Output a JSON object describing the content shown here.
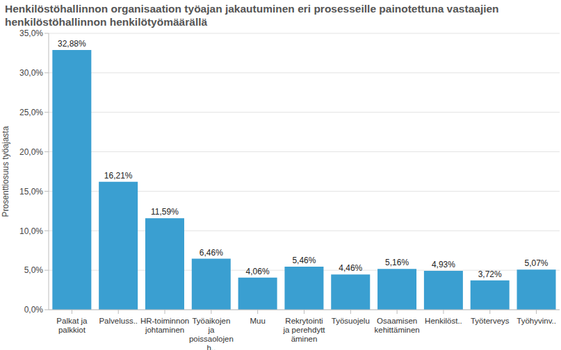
{
  "chart_data": {
    "type": "bar",
    "title": "Henkilöstöhallinnon organisaation työajan jakautuminen eri prosesseille painotettuna vastaajien henkilöstöhallinnon henkilötyömäärällä",
    "y_label": "Prosenttiosuus työajasta",
    "categories": [
      "Palkat ja palkkiot",
      "Palveluss..",
      "HR-toiminnon johtaminen",
      "Työaikojen ja poissaolojen h..",
      "Muu",
      "Rekrytointi ja perehdyttäminen",
      "Työsuojelu",
      "Osaamisen kehittäminen",
      "Henkilöst..",
      "Työterveys",
      "Työhyvinv.."
    ],
    "values": [
      32.88,
      16.21,
      11.59,
      6.46,
      4.06,
      5.46,
      4.46,
      5.16,
      4.93,
      3.72,
      5.07
    ],
    "value_labels": [
      "32,88%",
      "16,21%",
      "11,59%",
      "6,46%",
      "4,06%",
      "5,46%",
      "4,46%",
      "5,16%",
      "4,93%",
      "3,72%",
      "5,07%"
    ],
    "color": "#3a9fd1",
    "ylim": [
      0,
      35
    ],
    "yticks": [
      {
        "value": 0,
        "label": "0,0%"
      },
      {
        "value": 5,
        "label": "5,0%"
      },
      {
        "value": 10,
        "label": "10,0%"
      },
      {
        "value": 15,
        "label": "15,0%"
      },
      {
        "value": 20,
        "label": "20,0%"
      },
      {
        "value": 25,
        "label": "25,0%"
      },
      {
        "value": 30,
        "label": "30,0%"
      },
      {
        "value": 35,
        "label": "35,0%"
      }
    ],
    "grid": true,
    "data_labels": true
  }
}
